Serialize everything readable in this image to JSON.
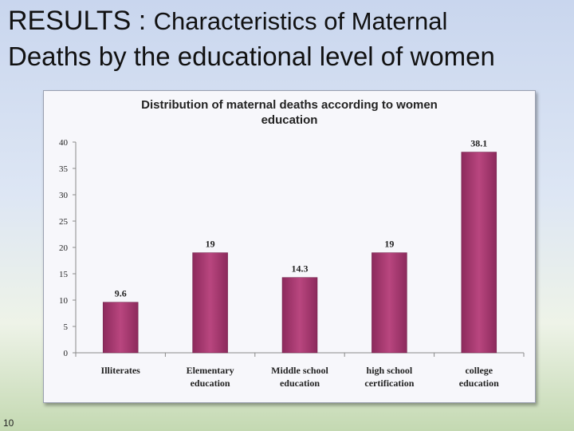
{
  "slide": {
    "title_part1": "RESULTS : ",
    "title_part2": "Characteristics of Maternal",
    "title_line2": "Deaths by the educational level of women",
    "slide_number": "10"
  },
  "chart_data": {
    "type": "bar",
    "title_line1": "Distribution of maternal deaths according to women",
    "title_line2": "education",
    "categories": [
      [
        "Illiterates"
      ],
      [
        "Elementary",
        "education"
      ],
      [
        "Middle school",
        "education"
      ],
      [
        "high school",
        "certification"
      ],
      [
        "college",
        "education"
      ]
    ],
    "values": [
      9.6,
      19,
      14.3,
      19,
      38.1
    ],
    "value_labels": [
      "9.6",
      "19",
      "14.3",
      "19",
      "38.1"
    ],
    "ylim": [
      0,
      40
    ],
    "yticks": [
      0,
      5,
      10,
      15,
      20,
      25,
      30,
      35,
      40
    ],
    "bar_color": "#8c2a5c",
    "bar_highlight": "#b9467f",
    "grid": false
  }
}
